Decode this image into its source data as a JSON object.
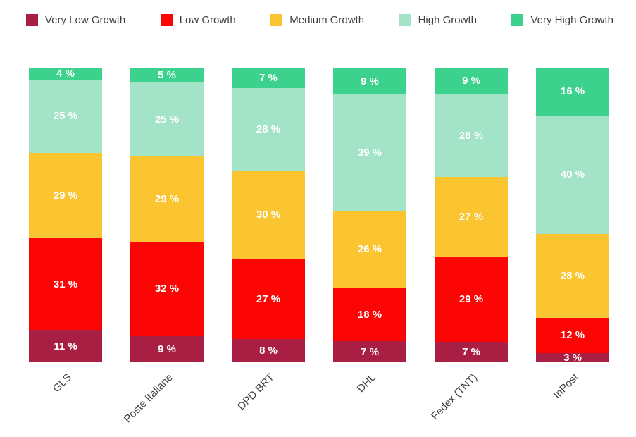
{
  "legend": {
    "position": "top",
    "items": [
      {
        "label": "Very Low Growth",
        "color": "#a91f44"
      },
      {
        "label": "Low Growth",
        "color": "#fb0505"
      },
      {
        "label": "Medium Growth",
        "color": "#fbc531"
      },
      {
        "label": "High Growth",
        "color": "#a3e3c7"
      },
      {
        "label": "Very High Growth",
        "color": "#3cd18c"
      }
    ]
  },
  "chart_data": {
    "type": "bar",
    "stacked": true,
    "orientation": "vertical",
    "normalized_to_100_percent": true,
    "grid": false,
    "legend_position": "top",
    "x_tick_rotation": -45,
    "value_label_format": "{v} %",
    "unit": "%",
    "categories": [
      "GLS",
      "Poste Italiane",
      "DPD BRT",
      "DHL",
      "Fedex (TNT)",
      "InPost"
    ],
    "series": [
      {
        "name": "Very Low Growth",
        "color": "#a91f44",
        "values": [
          11,
          9,
          8,
          7,
          7,
          3
        ]
      },
      {
        "name": "Low Growth",
        "color": "#fb0505",
        "values": [
          31,
          32,
          27,
          18,
          29,
          12
        ]
      },
      {
        "name": "Medium Growth",
        "color": "#fbc531",
        "values": [
          29,
          29,
          30,
          26,
          27,
          28
        ]
      },
      {
        "name": "High Growth",
        "color": "#a3e3c7",
        "values": [
          25,
          25,
          28,
          39,
          28,
          40
        ]
      },
      {
        "name": "Very High Growth",
        "color": "#3cd18c",
        "values": [
          4,
          5,
          7,
          9,
          9,
          16
        ]
      }
    ],
    "stack_order_top_to_bottom": [
      "Very High Growth",
      "High Growth",
      "Medium Growth",
      "Low Growth",
      "Very Low Growth"
    ],
    "text_color_in_bars": "#ffffff",
    "axis_label_color": "#3f3f3e",
    "background_color": "#ffffff"
  }
}
